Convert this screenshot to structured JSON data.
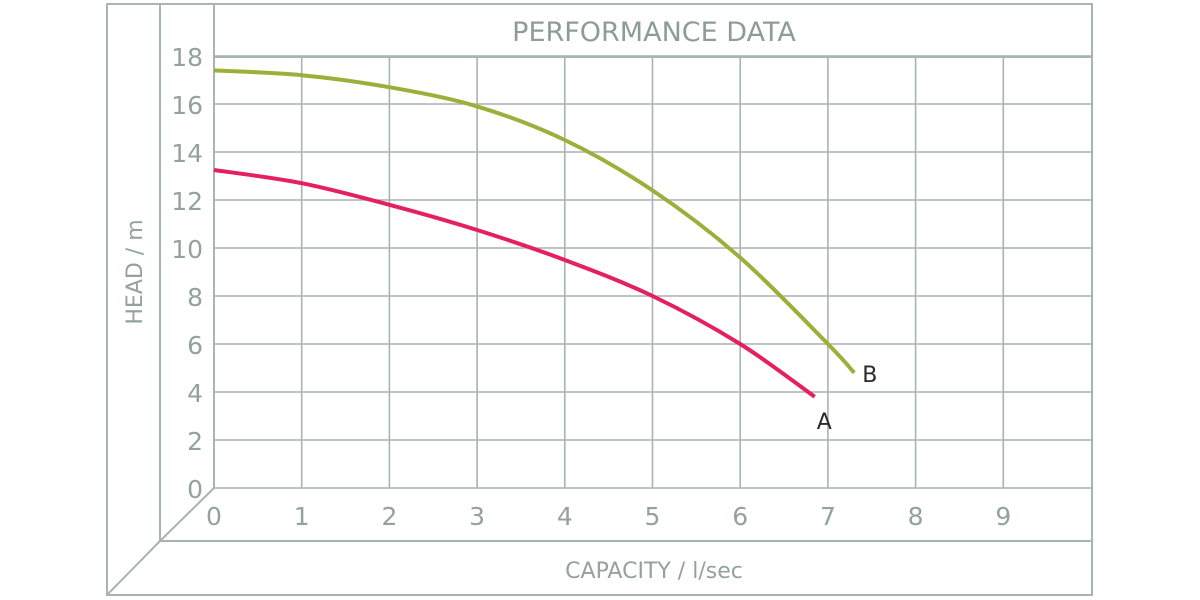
{
  "chart_data": {
    "type": "line",
    "title": "PERFORMANCE DATA",
    "xlabel": "CAPACITY / l/sec",
    "ylabel": "HEAD / m",
    "xlim": [
      0,
      10
    ],
    "ylim": [
      0,
      18
    ],
    "x_ticks": [
      "0",
      "1",
      "2",
      "3",
      "4",
      "5",
      "6",
      "7",
      "8",
      "9"
    ],
    "y_ticks": [
      "0",
      "2",
      "4",
      "6",
      "8",
      "10",
      "12",
      "14",
      "16",
      "18"
    ],
    "grid": true,
    "legend": "inline labels at curve ends",
    "series": [
      {
        "name": "A",
        "color": "#E5205F",
        "x": [
          0,
          1,
          2,
          3,
          4,
          5,
          6,
          6.85
        ],
        "y": [
          13.25,
          12.7,
          11.8,
          10.75,
          9.5,
          8.0,
          6.0,
          3.8
        ]
      },
      {
        "name": "B",
        "color": "#9BB03A",
        "x": [
          0,
          1,
          2,
          3,
          4,
          5,
          6,
          7,
          7.3
        ],
        "y": [
          17.4,
          17.2,
          16.7,
          15.9,
          14.5,
          12.4,
          9.6,
          6.0,
          4.8
        ]
      }
    ]
  },
  "colors": {
    "frame": "#A7B4B0",
    "text": "#93A29E",
    "series_label": "#2a2a2a"
  }
}
